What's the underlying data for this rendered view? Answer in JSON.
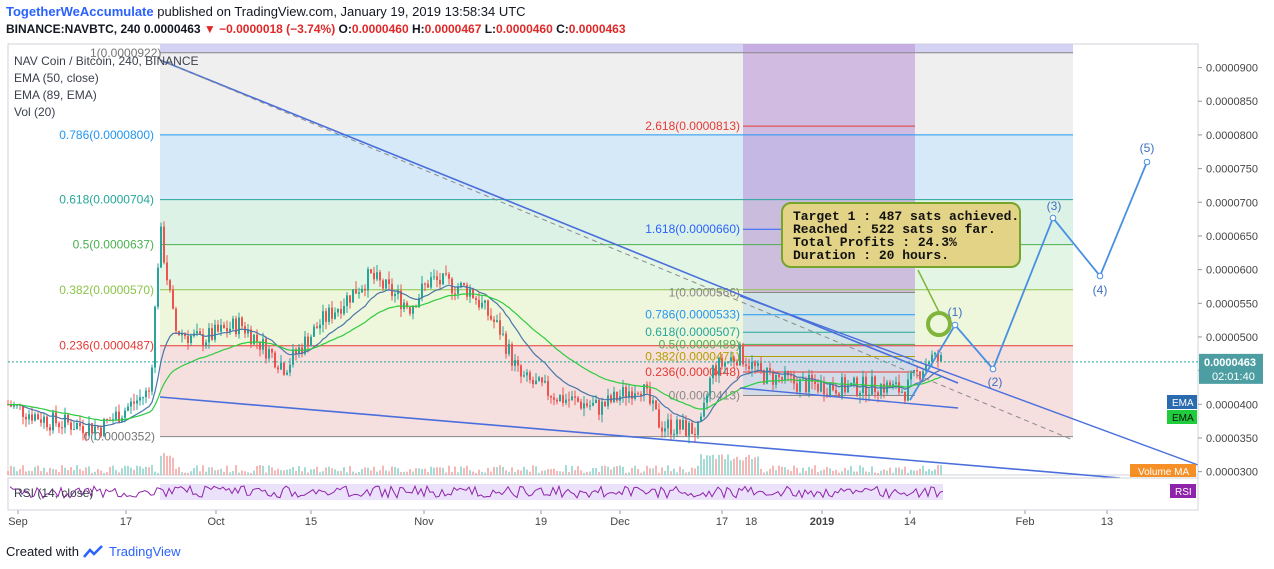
{
  "header": {
    "author": "TogetherWeAccumulate",
    "published": "published on TradingView.com, January 19, 2019 13:58:34 UTC",
    "symbol_line": "BINANCE:NAVBTC, 240",
    "last": "0.0000463",
    "change": "▼ −0.0000018 (−3.74%)",
    "o_label": "O:",
    "o_value": "0.0000460",
    "h_label": "H:",
    "h_value": "0.0000467",
    "l_label": "L:",
    "l_value": "0.0000460",
    "c_label": "C:",
    "c_value": "0.0000463"
  },
  "legend": {
    "title": "NAV Coin / Bitcoin, 240, BINANCE",
    "ema50": "EMA (50, close)",
    "ema89": "EMA (89, EMA)",
    "vol": "Vol (20)"
  },
  "callout": {
    "line1": "Target 1 : 487 sats achieved.",
    "line2": "Reached : 522 sats so far.",
    "line3": "Total Profits : 24.3%",
    "line4": "Duration : 20 hours."
  },
  "footer": {
    "created_with": "Created with",
    "brand": "TradingView"
  },
  "chart_data": {
    "type": "candlestick",
    "x_ticks": [
      "Sep",
      "17",
      "Oct",
      "15",
      "Nov",
      "19",
      "Dec",
      "17",
      "18",
      "2019",
      "14",
      "Feb",
      "13"
    ],
    "y_ticks": [
      "0.0000900",
      "0.0000850",
      "0.0000800",
      "0.0000750",
      "0.0000700",
      "0.0000650",
      "0.0000600",
      "0.0000550",
      "0.0000500",
      "0.0000450",
      "0.0000400",
      "0.0000350",
      "0.0000300"
    ],
    "ylim": [
      2.95e-05,
      9.35e-05
    ],
    "current_price_label": "0.0000463",
    "countdown_label": "02:01:40",
    "axis_badges": [
      "EMA",
      "EMA"
    ],
    "volume_badge": "Volume MA",
    "rsi_badge": "RSI",
    "rsi_legend": "RSI (14, close)",
    "fib_left": [
      {
        "label": "0.786(0.0000800)",
        "value": 8e-05,
        "color": "#2196f3",
        "fill": "#cfe5f7"
      },
      {
        "label": "0.618(0.0000704)",
        "value": 7.04e-05,
        "color": "#26a69a",
        "fill": "#d7f0e3"
      },
      {
        "label": "0.5(0.0000637)",
        "value": 6.37e-05,
        "color": "#4caf50",
        "fill": "#def4e1"
      },
      {
        "label": "0.382(0.0000570)",
        "value": 5.7e-05,
        "color": "#8bc34a",
        "fill": "#ebf4d5"
      },
      {
        "label": "0.236(0.0000487)",
        "value": 4.87e-05,
        "color": "#e53935",
        "fill": "#f3d9d9"
      },
      {
        "label": "0(0.0000352)",
        "value": 3.52e-05,
        "color": "#888888",
        "fill": ""
      },
      {
        "label": "1(0.0000922)",
        "value": 9.22e-05,
        "color": "#888888",
        "fill": ""
      }
    ],
    "fib_right": [
      {
        "label": "2.618(0.0000813)",
        "value": 8.13e-05,
        "color": "#e53935"
      },
      {
        "label": "1.618(0.0000660)",
        "value": 6.6e-05,
        "color": "#2962ff"
      },
      {
        "label": "1(0.0000566)",
        "value": 5.66e-05,
        "color": "#888888"
      },
      {
        "label": "0.786(0.0000533)",
        "value": 5.33e-05,
        "color": "#2196f3"
      },
      {
        "label": "0.618(0.0000507)",
        "value": 5.07e-05,
        "color": "#26a69a"
      },
      {
        "label": "0.5(0.0000489)",
        "value": 4.89e-05,
        "color": "#4caf50"
      },
      {
        "label": "0.382(0.0000471)",
        "value": 4.71e-05,
        "color": "#b3a000"
      },
      {
        "label": "0.236(0.0000448)",
        "value": 4.48e-05,
        "color": "#e53935"
      },
      {
        "label": "0(0.0000413)",
        "value": 4.13e-05,
        "color": "#888888"
      }
    ],
    "wave_labels": [
      "(1)",
      "(2)",
      "(3)",
      "(4)",
      "(5)"
    ],
    "series": [
      {
        "name": "Price",
        "color": "#26a69a"
      },
      {
        "name": "EMA (50, close)",
        "color": "#4a76a8"
      },
      {
        "name": "EMA (89, EMA)",
        "color": "#2ecc40"
      }
    ],
    "colors": {
      "up": "#26a69a",
      "down": "#ef5350",
      "projection": "#4a90e2",
      "trendline": "#4a6fdc"
    }
  }
}
